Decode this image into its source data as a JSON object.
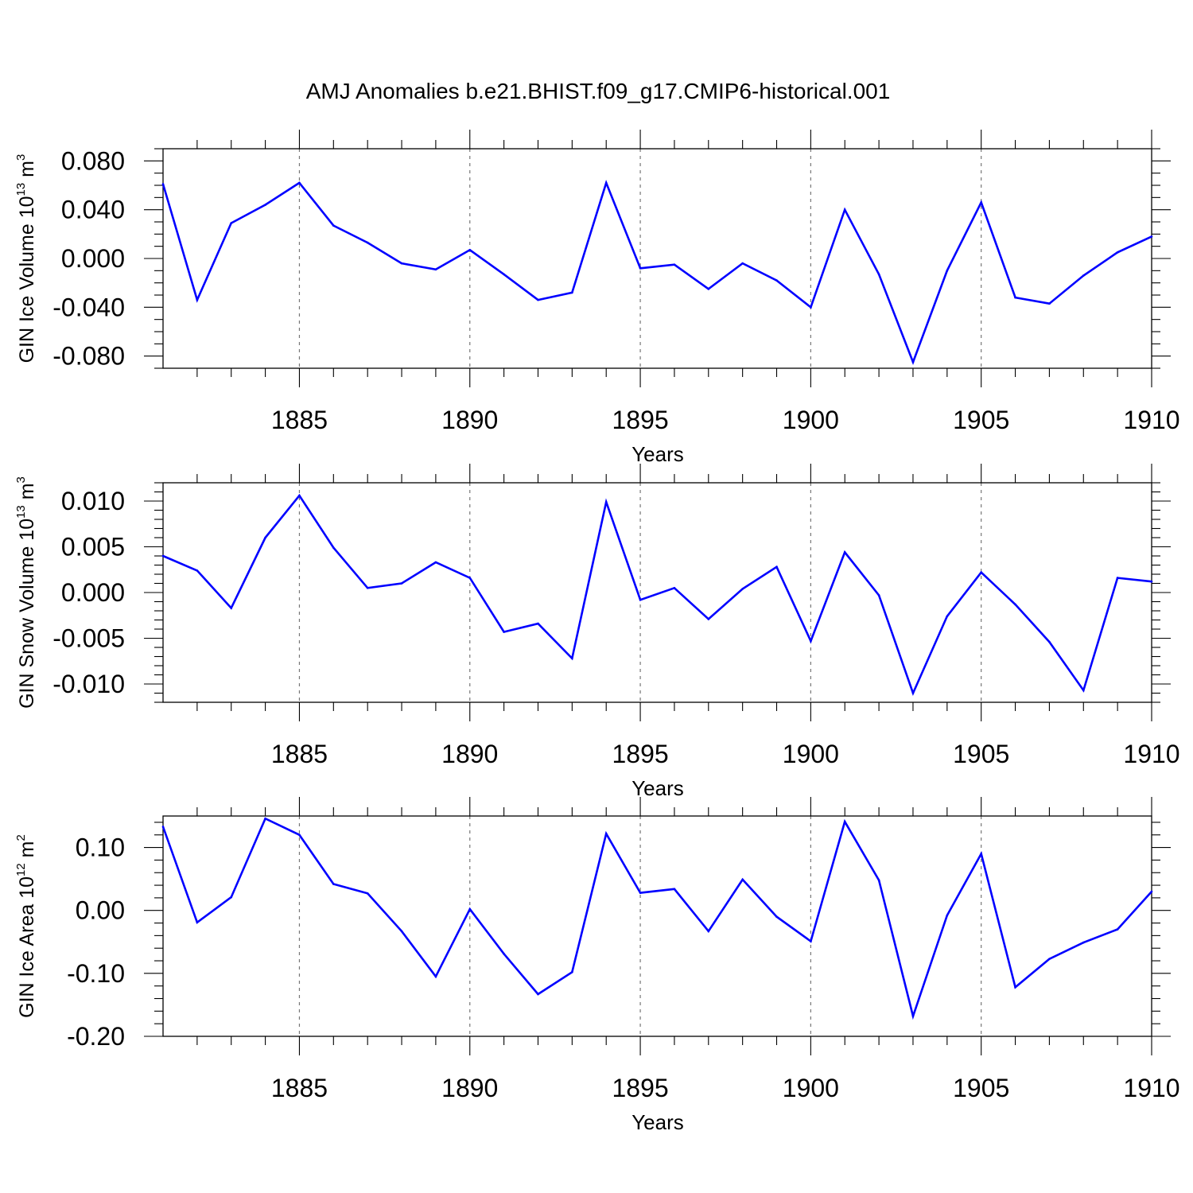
{
  "title": "AMJ Anomalies b.e21.BHIST.f09_g17.CMIP6-historical.001",
  "colors": {
    "series": "#0000ff",
    "axes": "#000000",
    "grid": "#777777"
  },
  "chart_data": [
    {
      "type": "line",
      "xlabel": "Years",
      "ylabel": {
        "text": "GIN Ice Volume 10",
        "sup": "13",
        "unit": " m",
        "unit_sup": "3"
      },
      "xlim": [
        1881,
        1910
      ],
      "ylim": [
        -0.09,
        0.09
      ],
      "xticks": [
        1885,
        1890,
        1895,
        1900,
        1905,
        1910
      ],
      "yticks": [
        -0.08,
        -0.04,
        0.0,
        0.04,
        0.08
      ],
      "ytick_labels": [
        "-0.080",
        "-0.040",
        "0.000",
        "0.040",
        "0.080"
      ],
      "grid": "x dashed at major ticks",
      "x": [
        1881,
        1882,
        1883,
        1884,
        1885,
        1886,
        1887,
        1888,
        1889,
        1890,
        1891,
        1892,
        1893,
        1894,
        1895,
        1896,
        1897,
        1898,
        1899,
        1900,
        1901,
        1902,
        1903,
        1904,
        1905,
        1906,
        1907,
        1908,
        1909,
        1910
      ],
      "values": [
        0.061,
        -0.034,
        0.029,
        0.044,
        0.062,
        0.027,
        0.013,
        -0.004,
        -0.009,
        0.007,
        -0.013,
        -0.034,
        -0.028,
        0.062,
        -0.008,
        -0.005,
        -0.025,
        -0.004,
        -0.018,
        -0.04,
        0.04,
        -0.013,
        -0.085,
        -0.01,
        0.046,
        -0.032,
        -0.037,
        -0.014,
        0.005,
        0.018
      ]
    },
    {
      "type": "line",
      "xlabel": "Years",
      "ylabel": {
        "text": "GIN Snow Volume 10",
        "sup": "13",
        "unit": " m",
        "unit_sup": "3"
      },
      "xlim": [
        1881,
        1910
      ],
      "ylim": [
        -0.012,
        0.012
      ],
      "xticks": [
        1885,
        1890,
        1895,
        1900,
        1905,
        1910
      ],
      "yticks": [
        -0.01,
        -0.005,
        0.0,
        0.005,
        0.01
      ],
      "ytick_labels": [
        "-0.010",
        "-0.005",
        "0.000",
        "0.005",
        "0.010"
      ],
      "grid": "x dashed at major ticks",
      "x": [
        1881,
        1882,
        1883,
        1884,
        1885,
        1886,
        1887,
        1888,
        1889,
        1890,
        1891,
        1892,
        1893,
        1894,
        1895,
        1896,
        1897,
        1898,
        1899,
        1900,
        1901,
        1902,
        1903,
        1904,
        1905,
        1906,
        1907,
        1908,
        1909,
        1910
      ],
      "values": [
        0.004,
        0.0024,
        -0.0017,
        0.006,
        0.0106,
        0.0049,
        0.0005,
        0.001,
        0.0033,
        0.0016,
        -0.0043,
        -0.0034,
        -0.0072,
        0.0099,
        -0.0008,
        0.0005,
        -0.0029,
        0.0004,
        0.0028,
        -0.0053,
        0.0044,
        -0.0003,
        -0.011,
        -0.0026,
        0.0022,
        -0.0013,
        -0.0054,
        -0.0107,
        0.0016,
        0.0012
      ]
    },
    {
      "type": "line",
      "xlabel": "Years",
      "ylabel": {
        "text": "GIN Ice Area 10",
        "sup": "12",
        "unit": " m",
        "unit_sup": "2"
      },
      "xlim": [
        1881,
        1910
      ],
      "ylim": [
        -0.2,
        0.15
      ],
      "xticks": [
        1885,
        1890,
        1895,
        1900,
        1905,
        1910
      ],
      "yticks": [
        -0.2,
        -0.1,
        0.0,
        0.1
      ],
      "ytick_labels": [
        "-0.20",
        "-0.10",
        "0.00",
        "0.10"
      ],
      "grid": "x dashed at major ticks",
      "x": [
        1881,
        1882,
        1883,
        1884,
        1885,
        1886,
        1887,
        1888,
        1889,
        1890,
        1891,
        1892,
        1893,
        1894,
        1895,
        1896,
        1897,
        1898,
        1899,
        1900,
        1901,
        1902,
        1903,
        1904,
        1905,
        1906,
        1907,
        1908,
        1909,
        1910
      ],
      "values": [
        0.133,
        -0.019,
        0.021,
        0.146,
        0.12,
        0.042,
        0.027,
        -0.033,
        -0.105,
        0.002,
        -0.069,
        -0.133,
        -0.098,
        0.122,
        0.028,
        0.034,
        -0.033,
        0.049,
        -0.01,
        -0.049,
        0.141,
        0.048,
        -0.168,
        -0.008,
        0.09,
        -0.122,
        -0.077,
        -0.051,
        -0.03,
        0.03
      ]
    }
  ]
}
